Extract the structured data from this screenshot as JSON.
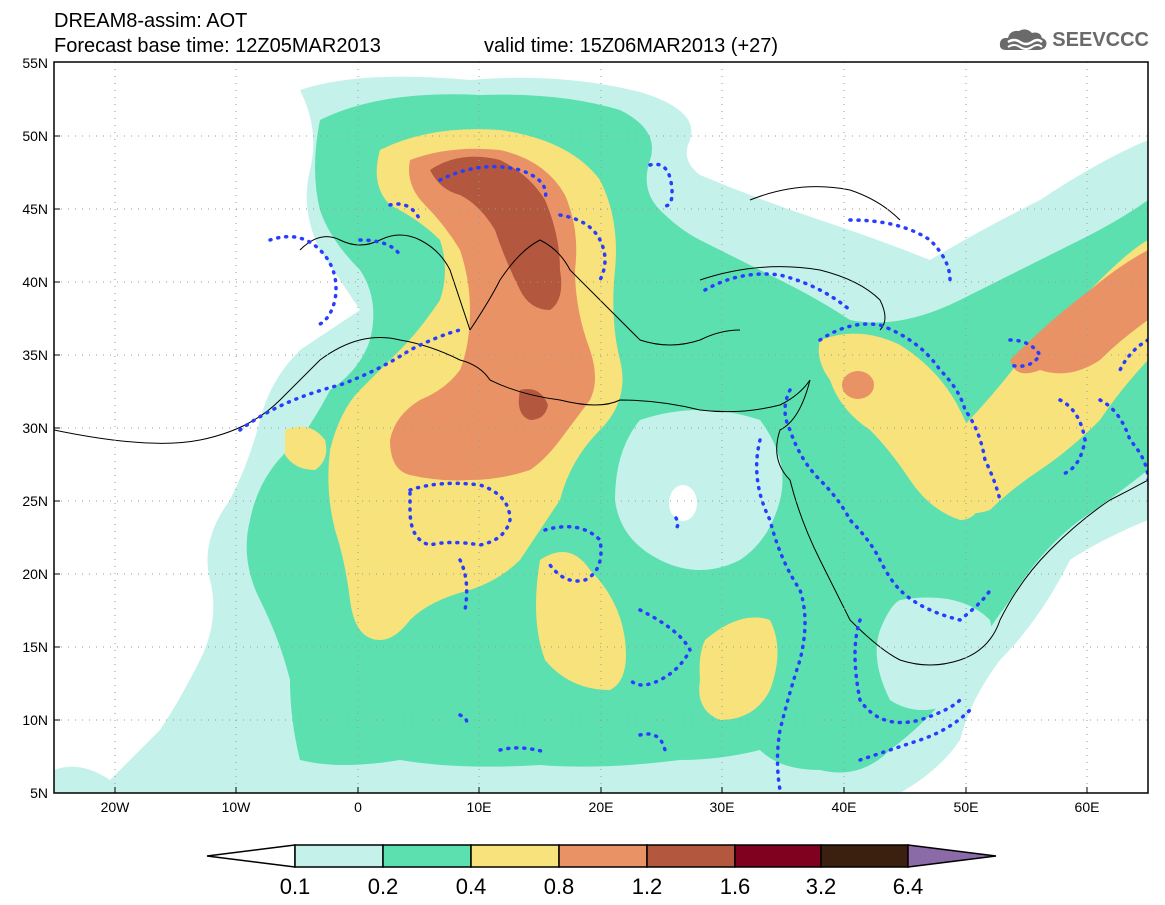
{
  "header": {
    "title": "DREAM8-assim: AOT",
    "forecast": "Forecast base time: 12Z05MAR2013",
    "valid": "valid time: 15Z06MAR2013 (+27)"
  },
  "logo": {
    "text": "SEEVCCC",
    "icon": "cloud-icon",
    "color": "#6a6a6a"
  },
  "map": {
    "lon_range": [
      -25,
      65
    ],
    "lat_range": [
      5,
      55
    ],
    "lat_ticks": [
      "5N",
      "10N",
      "15N",
      "20N",
      "25N",
      "30N",
      "35N",
      "40N",
      "45N",
      "50N",
      "55N"
    ],
    "lon_ticks": [
      "20W",
      "10W",
      "0",
      "10E",
      "20E",
      "30E",
      "40E",
      "50E",
      "60E"
    ],
    "grid": "dotted"
  },
  "colorbar": {
    "labels": [
      "0.1",
      "0.2",
      "0.4",
      "0.8",
      "1.2",
      "1.6",
      "3.2",
      "6.4"
    ],
    "colors": [
      "#ffffff",
      "#c4f2ea",
      "#5ce0b0",
      "#f7e27b",
      "#e99266",
      "#b4573f",
      "#800020",
      "#3b2010",
      "#8b6aa8"
    ]
  }
}
